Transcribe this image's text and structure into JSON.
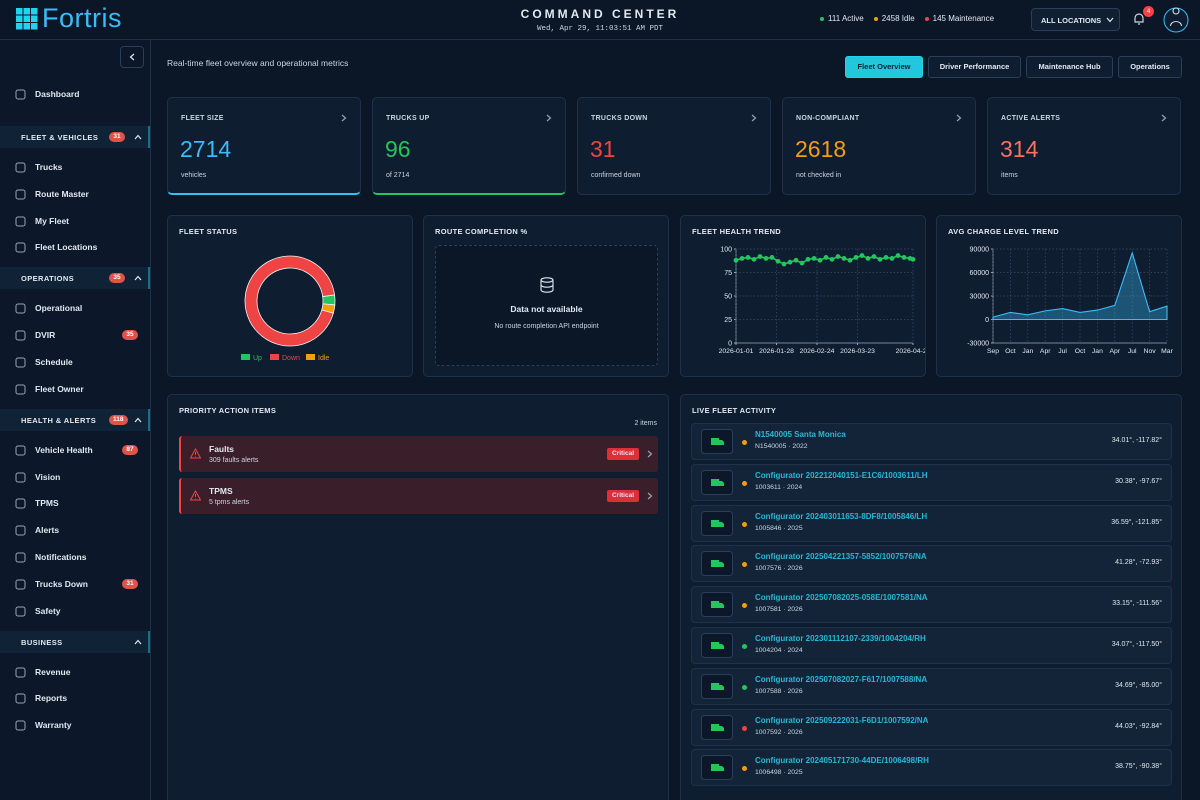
{
  "header": {
    "brand": "Fortris",
    "title": "COMMAND CENTER",
    "datetime": "Wed, Apr 29, 11:03:51 AM PDT",
    "stats": [
      {
        "label": "111 Active",
        "color": "#22c55e"
      },
      {
        "label": "2458 Idle",
        "color": "#f59e0b"
      },
      {
        "label": "145 Maintenance",
        "color": "#ef4444"
      }
    ],
    "location": "ALL LOCATIONS",
    "notifications": "4"
  },
  "sidebar": {
    "top": "Dashboard",
    "sections": [
      {
        "title": "FLEET & VEHICLES",
        "badge": "31",
        "items": [
          {
            "label": "Trucks"
          },
          {
            "label": "Route Master"
          },
          {
            "label": "My Fleet"
          },
          {
            "label": "Fleet Locations"
          }
        ]
      },
      {
        "title": "OPERATIONS",
        "badge": "35",
        "items": [
          {
            "label": "Operational"
          },
          {
            "label": "DVIR",
            "badge": "35"
          },
          {
            "label": "Schedule"
          },
          {
            "label": "Fleet Owner"
          }
        ]
      },
      {
        "title": "HEALTH & ALERTS",
        "badge": "118",
        "items": [
          {
            "label": "Vehicle Health",
            "badge": "87"
          },
          {
            "label": "Vision"
          },
          {
            "label": "TPMS"
          },
          {
            "label": "Alerts"
          },
          {
            "label": "Notifications"
          },
          {
            "label": "Trucks Down",
            "badge": "31"
          },
          {
            "label": "Safety"
          }
        ]
      },
      {
        "title": "BUSINESS",
        "items": [
          {
            "label": "Revenue"
          },
          {
            "label": "Reports"
          },
          {
            "label": "Warranty"
          }
        ]
      }
    ]
  },
  "subtitle": "Real-time fleet overview and operational metrics",
  "tabs": [
    "Fleet Overview",
    "Driver Performance",
    "Maintenance Hub",
    "Operations"
  ],
  "kpis": [
    {
      "label": "FLEET SIZE",
      "value": "2714",
      "sub": "vehicles",
      "color": "#38bdf8",
      "highlight": true
    },
    {
      "label": "TRUCKS UP",
      "value": "96",
      "sub": "of 2714",
      "color": "#22c55e",
      "highlight": true
    },
    {
      "label": "TRUCKS DOWN",
      "value": "31",
      "sub": "confirmed down",
      "color": "#ef4444",
      "highlight": false
    },
    {
      "label": "NON-COMPLIANT",
      "value": "2618",
      "sub": "not checked in",
      "color": "#f59e0b",
      "highlight": false
    },
    {
      "label": "ACTIVE ALERTS",
      "value": "314",
      "sub": "items",
      "color": "#f87060",
      "highlight": false
    }
  ],
  "route_completion": {
    "title": "ROUTE COMPLETION %",
    "message": "Data not available",
    "detail": "No route completion API endpoint"
  },
  "chart_data": [
    {
      "type": "pie",
      "title": "FLEET STATUS",
      "categories": [
        "Up",
        "Down",
        "Idle"
      ],
      "values": [
        96,
        2538,
        80
      ],
      "colors": [
        "#22c55e",
        "#ef4444",
        "#f59e0b"
      ],
      "donut": true
    },
    {
      "type": "line",
      "title": "FLEET HEALTH TREND",
      "color": "#22c55e",
      "grid": true,
      "x": [
        "2026-01-01",
        "2026-01-05",
        "2026-01-09",
        "2026-01-13",
        "2026-01-17",
        "2026-01-21",
        "2026-01-25",
        "2026-01-29",
        "2026-02-02",
        "2026-02-06",
        "2026-02-10",
        "2026-02-14",
        "2026-02-18",
        "2026-02-22",
        "2026-02-26",
        "2026-03-02",
        "2026-03-06",
        "2026-03-10",
        "2026-03-14",
        "2026-03-18",
        "2026-03-22",
        "2026-03-26",
        "2026-03-30",
        "2026-04-03",
        "2026-04-07",
        "2026-04-11",
        "2026-04-15",
        "2026-04-19",
        "2026-04-23",
        "2026-04-27",
        "2026-04-29"
      ],
      "values": [
        88,
        90,
        91,
        89,
        92,
        90,
        91,
        87,
        84,
        86,
        88,
        85,
        89,
        90,
        88,
        91,
        89,
        92,
        90,
        88,
        91,
        93,
        90,
        92,
        89,
        91,
        90,
        93,
        91,
        90,
        89
      ],
      "xlim": [
        "2026-01-01",
        "2026-04-29"
      ],
      "xticks": [
        "2026-01-01",
        "2026-01-28",
        "2026-02-24",
        "2026-03-23",
        "2026-04-29"
      ],
      "ylim": [
        0,
        100
      ],
      "yticks": [
        0,
        25,
        50,
        75,
        100
      ]
    },
    {
      "type": "area",
      "title": "AVG CHARGE LEVEL TREND",
      "color": "#38bdf8",
      "grid": true,
      "categories": [
        "Sep",
        "Oct",
        "Jan",
        "Apr",
        "Jul",
        "Oct",
        "Jan",
        "Apr",
        "Jul",
        "Nov",
        "Mar"
      ],
      "values": [
        3000,
        9000,
        6000,
        11000,
        14000,
        9000,
        12000,
        18000,
        85000,
        10000,
        17000
      ],
      "ylim": [
        -30000,
        90000
      ],
      "yticks": [
        -30000,
        0,
        30000,
        60000,
        90000
      ]
    }
  ],
  "priority": {
    "title": "PRIORITY ACTION ITEMS",
    "count": "2 items",
    "items": [
      {
        "title": "Faults",
        "detail": "309 faults alerts",
        "badge": "Critical"
      },
      {
        "title": "TPMS",
        "detail": "5 tpms alerts",
        "badge": "Critical"
      }
    ]
  },
  "live": {
    "title": "LIVE FLEET ACTIVITY",
    "rows": [
      {
        "name": "N1540005 Santa Monica",
        "sub": "N1540005 · 2022",
        "coords": "34.01°, -117.82°",
        "status": "#f59e0b"
      },
      {
        "name": "Configurator 202212040151-E1C6/1003611/LH",
        "sub": "1003611 · 2024",
        "coords": "30.38°, -97.67°",
        "status": "#f59e0b"
      },
      {
        "name": "Configurator 202403011653-8DF8/1005846/LH",
        "sub": "1005846 · 2025",
        "coords": "36.59°, -121.85°",
        "status": "#f59e0b"
      },
      {
        "name": "Configurator 202504221357-5852/1007576/NA",
        "sub": "1007576 · 2026",
        "coords": "41.28°, -72.93°",
        "status": "#f59e0b"
      },
      {
        "name": "Configurator 202507082025-058E/1007581/NA",
        "sub": "1007581 · 2026",
        "coords": "33.15°, -111.56°",
        "status": "#f59e0b"
      },
      {
        "name": "Configurator 202301112107-2339/1004204/RH",
        "sub": "1004204 · 2024",
        "coords": "34.07°, -117.50°",
        "status": "#22c55e"
      },
      {
        "name": "Configurator 202507082027-F617/1007588/NA",
        "sub": "1007588 · 2026",
        "coords": "34.69°, -85.00°",
        "status": "#22c55e"
      },
      {
        "name": "Configurator 202509222031-F6D1/1007592/NA",
        "sub": "1007592 · 2026",
        "coords": "44.03°, -92.84°",
        "status": "#ef4444"
      },
      {
        "name": "Configurator 202405171730-44DE/1006498/RH",
        "sub": "1006498 · 2025",
        "coords": "38.75°, -90.38°",
        "status": "#f59e0b"
      }
    ]
  }
}
